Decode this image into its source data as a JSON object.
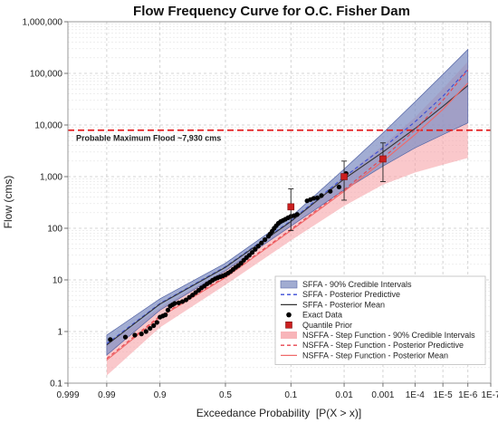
{
  "chart_data": {
    "type": "scatter",
    "title": "Flow Frequency Curve for O.C. Fisher Dam",
    "xlabel": "Exceedance Probability  [P(X > x)]",
    "ylabel": "Flow (cms)",
    "x_scale": "normal-probability",
    "y_scale": "log",
    "xlim": [
      0.999,
      1e-07
    ],
    "ylim": [
      0.1,
      1000000
    ],
    "grid": true,
    "x_ticks": [
      {
        "p": 0.999,
        "label": "0.999"
      },
      {
        "p": 0.99,
        "label": "0.99"
      },
      {
        "p": 0.9,
        "label": "0.9"
      },
      {
        "p": 0.5,
        "label": "0.5"
      },
      {
        "p": 0.1,
        "label": "0.1"
      },
      {
        "p": 0.01,
        "label": "0.01"
      },
      {
        "p": 0.001,
        "label": "0.001"
      },
      {
        "p": 0.0001,
        "label": "1E-4"
      },
      {
        "p": 1e-05,
        "label": "1E-5"
      },
      {
        "p": 1e-06,
        "label": "1E-6"
      },
      {
        "p": 1e-07,
        "label": "1E-7"
      }
    ],
    "y_ticks": [
      {
        "v": 0.1,
        "label": "0.1"
      },
      {
        "v": 1,
        "label": "1"
      },
      {
        "v": 10,
        "label": "10"
      },
      {
        "v": 100,
        "label": "100"
      },
      {
        "v": 1000,
        "label": "1,000"
      },
      {
        "v": 10000,
        "label": "10,000"
      },
      {
        "v": 100000,
        "label": "100,000"
      },
      {
        "v": 1000000,
        "label": "1,000,000"
      }
    ],
    "pmf": {
      "value": 7930,
      "label": "Probable Maximum Flood ~7,930 cms",
      "color": "#e31a1c"
    },
    "series": [
      {
        "name": "SFFA - 90% Credible Intervals",
        "kind": "band",
        "color": "#8a97c6",
        "points": [
          {
            "p": 0.99,
            "lower": 0.35,
            "upper": 0.85
          },
          {
            "p": 0.9,
            "lower": 2.6,
            "upper": 4.3
          },
          {
            "p": 0.5,
            "lower": 15,
            "upper": 21
          },
          {
            "p": 0.1,
            "lower": 110,
            "upper": 165
          },
          {
            "p": 0.01,
            "lower": 550,
            "upper": 1400
          },
          {
            "p": 0.001,
            "lower": 1600,
            "upper": 7000
          },
          {
            "p": 0.0001,
            "lower": 3600,
            "upper": 28000
          },
          {
            "p": 1e-05,
            "lower": 6500,
            "upper": 95000
          },
          {
            "p": 1e-06,
            "lower": 11000,
            "upper": 290000
          }
        ]
      },
      {
        "name": "SFFA - Posterior Predictive",
        "kind": "line",
        "color": "#3a4bd6",
        "dash": "4,3",
        "points": [
          {
            "p": 0.99,
            "v": 0.58
          },
          {
            "p": 0.9,
            "v": 3.5
          },
          {
            "p": 0.5,
            "v": 18
          },
          {
            "p": 0.1,
            "v": 140
          },
          {
            "p": 0.01,
            "v": 980
          },
          {
            "p": 0.001,
            "v": 3600
          },
          {
            "p": 0.0001,
            "v": 11500
          },
          {
            "p": 1e-05,
            "v": 36000
          },
          {
            "p": 1e-06,
            "v": 120000
          }
        ]
      },
      {
        "name": "SFFA - Posterior Mean",
        "kind": "line",
        "color": "#333333",
        "points": [
          {
            "p": 0.99,
            "v": 0.55
          },
          {
            "p": 0.9,
            "v": 3.4
          },
          {
            "p": 0.5,
            "v": 17.5
          },
          {
            "p": 0.1,
            "v": 135
          },
          {
            "p": 0.01,
            "v": 900
          },
          {
            "p": 0.001,
            "v": 3000
          },
          {
            "p": 0.0001,
            "v": 8500
          },
          {
            "p": 1e-05,
            "v": 23000
          },
          {
            "p": 1e-06,
            "v": 58000
          }
        ]
      },
      {
        "name": "Exact Data",
        "kind": "points",
        "color": "#000000",
        "points": [
          {
            "p": 0.988,
            "v": 0.7
          },
          {
            "p": 0.975,
            "v": 0.78
          },
          {
            "p": 0.962,
            "v": 0.85
          },
          {
            "p": 0.95,
            "v": 0.9
          },
          {
            "p": 0.94,
            "v": 1.0
          },
          {
            "p": 0.93,
            "v": 1.15
          },
          {
            "p": 0.92,
            "v": 1.3
          },
          {
            "p": 0.91,
            "v": 1.5
          },
          {
            "p": 0.9,
            "v": 1.9
          },
          {
            "p": 0.89,
            "v": 2.0
          },
          {
            "p": 0.88,
            "v": 2.1
          },
          {
            "p": 0.87,
            "v": 2.6
          },
          {
            "p": 0.86,
            "v": 3.1
          },
          {
            "p": 0.85,
            "v": 3.3
          },
          {
            "p": 0.84,
            "v": 3.5
          },
          {
            "p": 0.82,
            "v": 3.6
          },
          {
            "p": 0.8,
            "v": 3.8
          },
          {
            "p": 0.78,
            "v": 4.1
          },
          {
            "p": 0.76,
            "v": 4.6
          },
          {
            "p": 0.74,
            "v": 5.1
          },
          {
            "p": 0.72,
            "v": 5.7
          },
          {
            "p": 0.7,
            "v": 6.3
          },
          {
            "p": 0.68,
            "v": 7.0
          },
          {
            "p": 0.66,
            "v": 7.6
          },
          {
            "p": 0.64,
            "v": 8.4
          },
          {
            "p": 0.62,
            "v": 9.0
          },
          {
            "p": 0.6,
            "v": 9.8
          },
          {
            "p": 0.58,
            "v": 10.5
          },
          {
            "p": 0.56,
            "v": 11.0
          },
          {
            "p": 0.54,
            "v": 11.5
          },
          {
            "p": 0.52,
            "v": 12.0
          },
          {
            "p": 0.5,
            "v": 12.6
          },
          {
            "p": 0.48,
            "v": 13.5
          },
          {
            "p": 0.46,
            "v": 14.5
          },
          {
            "p": 0.44,
            "v": 16.0
          },
          {
            "p": 0.42,
            "v": 17.5
          },
          {
            "p": 0.4,
            "v": 19.0
          },
          {
            "p": 0.38,
            "v": 21.0
          },
          {
            "p": 0.36,
            "v": 24.0
          },
          {
            "p": 0.34,
            "v": 27.0
          },
          {
            "p": 0.32,
            "v": 30.0
          },
          {
            "p": 0.3,
            "v": 34.0
          },
          {
            "p": 0.28,
            "v": 39.0
          },
          {
            "p": 0.26,
            "v": 45.0
          },
          {
            "p": 0.24,
            "v": 52.0
          },
          {
            "p": 0.22,
            "v": 60.0
          },
          {
            "p": 0.2,
            "v": 70.0
          },
          {
            "p": 0.19,
            "v": 78.0
          },
          {
            "p": 0.18,
            "v": 88.0
          },
          {
            "p": 0.17,
            "v": 100.0
          },
          {
            "p": 0.16,
            "v": 112.0
          },
          {
            "p": 0.15,
            "v": 125.0
          },
          {
            "p": 0.14,
            "v": 135.0
          },
          {
            "p": 0.13,
            "v": 142.0
          },
          {
            "p": 0.12,
            "v": 150.0
          },
          {
            "p": 0.11,
            "v": 160.0
          },
          {
            "p": 0.1,
            "v": 170.0
          },
          {
            "p": 0.09,
            "v": 175.0
          },
          {
            "p": 0.08,
            "v": 185.0
          },
          {
            "p": 0.055,
            "v": 340.0
          },
          {
            "p": 0.048,
            "v": 360.0
          },
          {
            "p": 0.042,
            "v": 380.0
          },
          {
            "p": 0.036,
            "v": 390.0
          },
          {
            "p": 0.03,
            "v": 430.0
          },
          {
            "p": 0.02,
            "v": 520.0
          },
          {
            "p": 0.013,
            "v": 630.0
          },
          {
            "p": 0.009,
            "v": 1150.0
          }
        ]
      },
      {
        "name": "Quantile Prior",
        "kind": "errorbars",
        "color": "#cc1f1f",
        "points": [
          {
            "p": 0.1,
            "v": 260,
            "lower": 90,
            "upper": 580
          },
          {
            "p": 0.01,
            "v": 1000,
            "lower": 350,
            "upper": 2000
          },
          {
            "p": 0.001,
            "v": 2200,
            "lower": 800,
            "upper": 4500
          }
        ]
      },
      {
        "name": "NSFFA - Step Function - 90% Credible Intervals",
        "kind": "band",
        "color": "#f6a3a8",
        "points": [
          {
            "p": 0.99,
            "lower": 0.14,
            "upper": 0.55
          },
          {
            "p": 0.9,
            "lower": 1.2,
            "upper": 2.9
          },
          {
            "p": 0.5,
            "lower": 8.0,
            "upper": 16.0
          },
          {
            "p": 0.1,
            "lower": 58,
            "upper": 140
          },
          {
            "p": 0.01,
            "lower": 270,
            "upper": 1000
          },
          {
            "p": 0.001,
            "lower": 700,
            "upper": 4000
          },
          {
            "p": 0.0001,
            "lower": 1200,
            "upper": 14000
          },
          {
            "p": 1e-05,
            "lower": 1700,
            "upper": 50000
          },
          {
            "p": 1e-06,
            "lower": 2300,
            "upper": 170000
          }
        ]
      },
      {
        "name": "NSFFA - Step Function - Posterior Predictive",
        "kind": "line",
        "color": "#e8434d",
        "dash": "4,3",
        "points": [
          {
            "p": 0.99,
            "v": 0.3
          },
          {
            "p": 0.9,
            "v": 2.0
          },
          {
            "p": 0.5,
            "v": 11.5
          },
          {
            "p": 0.1,
            "v": 95
          },
          {
            "p": 0.01,
            "v": 560
          },
          {
            "p": 0.001,
            "v": 2300
          },
          {
            "p": 0.0001,
            "v": 8000
          },
          {
            "p": 1e-05,
            "v": 30000
          },
          {
            "p": 1e-06,
            "v": 115000
          }
        ]
      },
      {
        "name": "NSFFA - Step Function - Posterior Mean",
        "kind": "line",
        "color": "#ef6a6a",
        "points": [
          {
            "p": 0.99,
            "v": 0.28
          },
          {
            "p": 0.9,
            "v": 1.9
          },
          {
            "p": 0.5,
            "v": 11.0
          },
          {
            "p": 0.1,
            "v": 90
          },
          {
            "p": 0.01,
            "v": 520
          },
          {
            "p": 0.001,
            "v": 2000
          },
          {
            "p": 0.0001,
            "v": 6500
          },
          {
            "p": 1e-05,
            "v": 20000
          },
          {
            "p": 1e-06,
            "v": 65000
          }
        ]
      }
    ]
  }
}
